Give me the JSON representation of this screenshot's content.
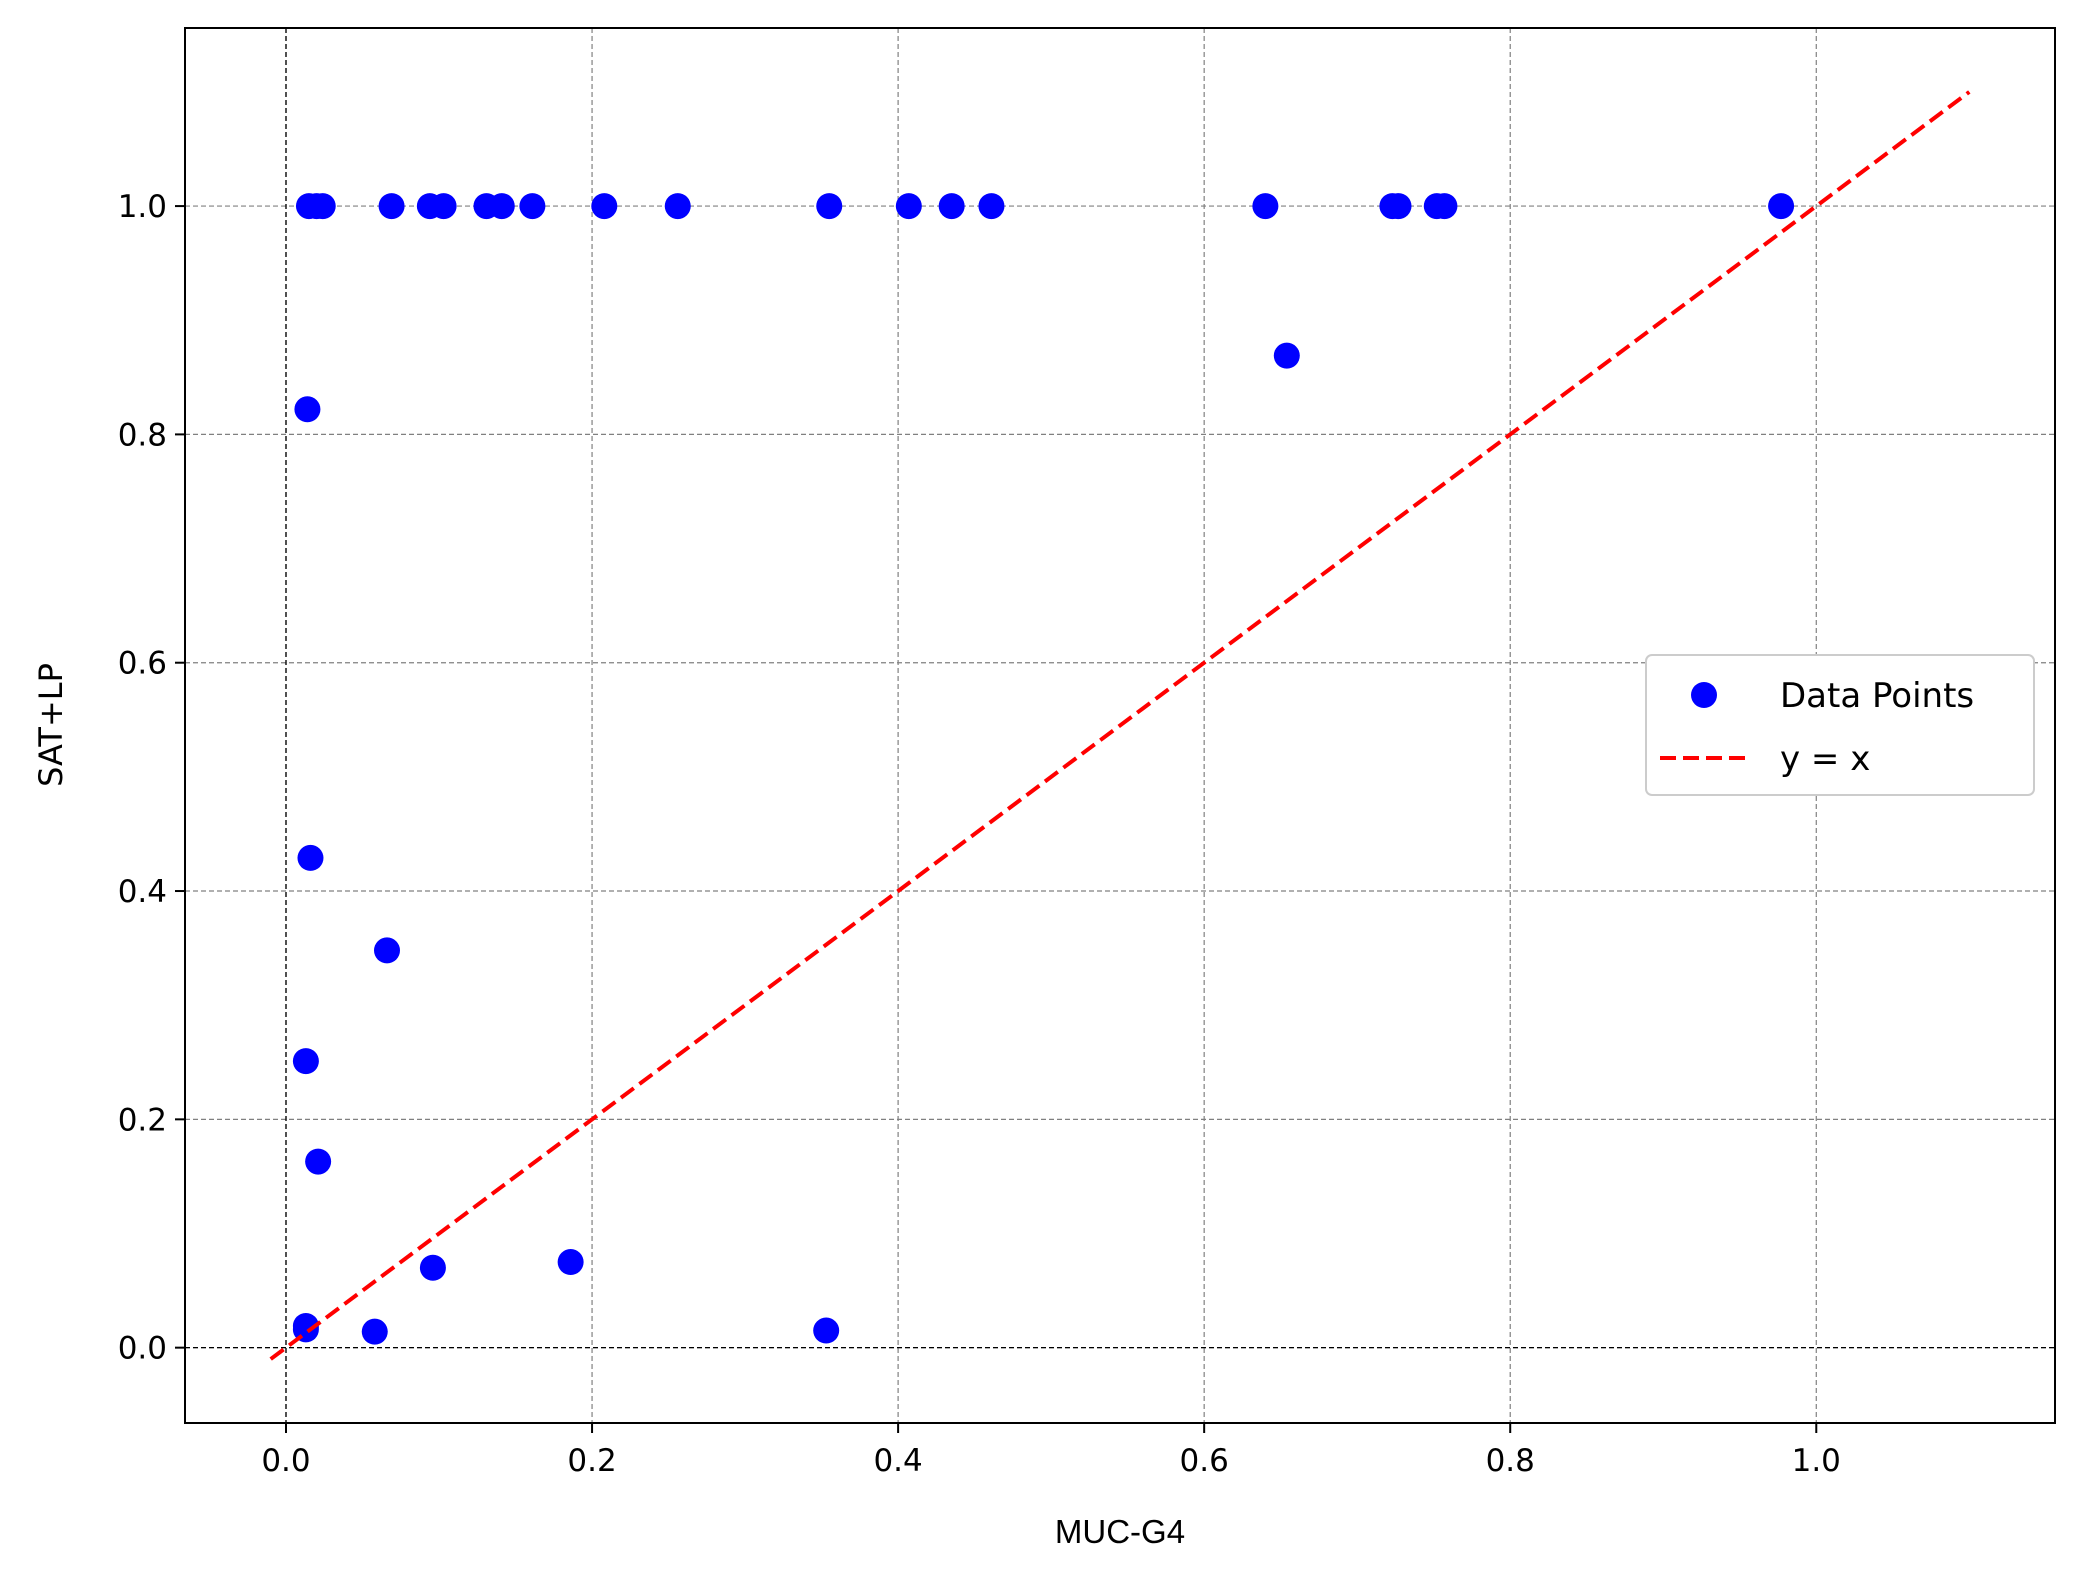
{
  "chart_data": {
    "type": "scatter",
    "title": "",
    "xlabel": "MUC-G4",
    "ylabel": "SAT+LP",
    "xlim": [
      -0.066,
      1.156
    ],
    "ylim": [
      -0.066,
      1.156
    ],
    "xticks": [
      0.0,
      0.2,
      0.4,
      0.6,
      0.8,
      1.0
    ],
    "yticks": [
      0.0,
      0.2,
      0.4,
      0.6,
      0.8,
      1.0
    ],
    "xtick_labels": [
      "0.0",
      "0.2",
      "0.4",
      "0.6",
      "0.8",
      "1.0"
    ],
    "ytick_labels": [
      "0.0",
      "0.2",
      "0.4",
      "0.6",
      "0.8",
      "1.0"
    ],
    "grid": true,
    "legend_position": "right",
    "series": [
      {
        "name": "Data Points",
        "kind": "scatter",
        "color": "#0000ff",
        "points": [
          [
            0.015,
            1.0
          ],
          [
            0.02,
            1.0
          ],
          [
            0.024,
            1.0
          ],
          [
            0.069,
            1.0
          ],
          [
            0.094,
            1.0
          ],
          [
            0.103,
            1.0
          ],
          [
            0.131,
            1.0
          ],
          [
            0.141,
            1.0
          ],
          [
            0.161,
            1.0
          ],
          [
            0.208,
            1.0
          ],
          [
            0.256,
            1.0
          ],
          [
            0.355,
            1.0
          ],
          [
            0.407,
            1.0
          ],
          [
            0.435,
            1.0
          ],
          [
            0.461,
            1.0
          ],
          [
            0.64,
            1.0
          ],
          [
            0.723,
            1.0
          ],
          [
            0.727,
            1.0
          ],
          [
            0.752,
            1.0
          ],
          [
            0.757,
            1.0
          ],
          [
            0.977,
            1.0
          ],
          [
            0.654,
            0.869
          ],
          [
            0.014,
            0.822
          ],
          [
            0.016,
            0.429
          ],
          [
            0.066,
            0.348
          ],
          [
            0.013,
            0.251
          ],
          [
            0.021,
            0.163
          ],
          [
            0.013,
            0.019
          ],
          [
            0.013,
            0.016
          ],
          [
            0.058,
            0.014
          ],
          [
            0.096,
            0.07
          ],
          [
            0.186,
            0.075
          ],
          [
            0.353,
            0.015
          ]
        ]
      },
      {
        "name": "y = x",
        "kind": "line",
        "color": "#ff0000",
        "dashed": true,
        "points": [
          [
            -0.01,
            -0.01
          ],
          [
            1.1,
            1.1
          ]
        ]
      }
    ]
  }
}
